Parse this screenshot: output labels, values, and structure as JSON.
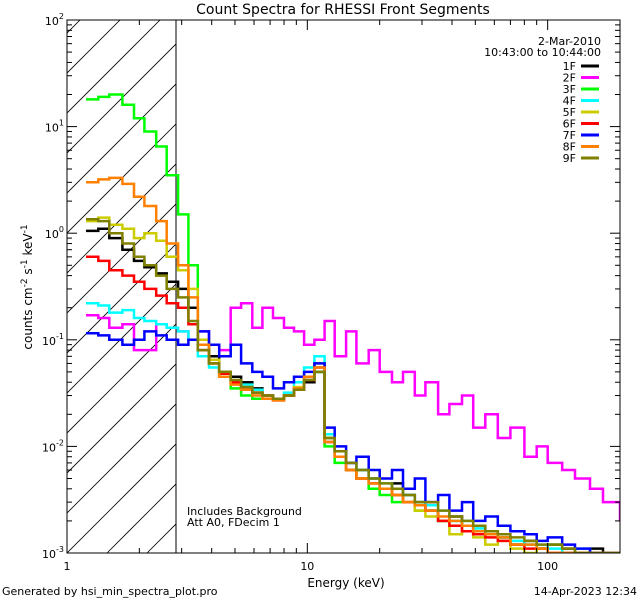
{
  "chart_data": {
    "type": "line",
    "title": "Count Spectra for RHESSI Front Segments",
    "xlabel": "Energy (keV)",
    "ylabel_main": "counts cm",
    "ylabel_sup1": "-2",
    "ylabel_mid1": " s",
    "ylabel_sup2": "-1",
    "ylabel_mid2": " keV",
    "ylabel_sup3": "-1",
    "xscale": "log",
    "yscale": "log",
    "xlim": [
      1,
      200
    ],
    "ylim": [
      0.001,
      100
    ],
    "xticks": [
      {
        "value": 1,
        "label": "1"
      },
      {
        "value": 10,
        "label": "10"
      },
      {
        "value": 100,
        "label": "100"
      }
    ],
    "yticks": [
      {
        "value": 100,
        "base": "10",
        "exp": "2"
      },
      {
        "value": 10,
        "base": "10",
        "exp": "1"
      },
      {
        "value": 1,
        "base": "10",
        "exp": "0"
      },
      {
        "value": 0.1,
        "base": "10",
        "exp": "-1"
      },
      {
        "value": 0.01,
        "base": "10",
        "exp": "-2"
      },
      {
        "value": 0.001,
        "base": "10",
        "exp": "-3"
      }
    ],
    "date": "2-Mar-2010",
    "time_range": "10:43:00 to 10:44:00",
    "hatched_region_max_keV": 3,
    "annotations": [
      "Includes Background",
      "Att A0, FDecim 1"
    ],
    "footer_left": "Generated by hsi_min_spectra_plot.pro",
    "footer_right": "14-Apr-2023 12:34",
    "series": [
      {
        "name": "1F",
        "color": "#000000",
        "x": [
          1.2,
          1.35,
          1.5,
          1.7,
          1.9,
          2.1,
          2.35,
          2.6,
          2.9,
          3.2,
          3.5,
          3.9,
          4.3,
          4.8,
          5.3,
          5.9,
          6.5,
          7.2,
          8.0,
          8.8,
          9.7,
          10.7,
          11.8,
          13,
          14.5,
          16,
          18,
          20,
          22.5,
          25,
          28,
          31,
          35,
          39,
          44,
          49,
          55,
          62,
          70,
          80,
          90,
          100,
          115,
          130,
          150,
          170,
          200
        ],
        "values": [
          1.05,
          1.1,
          0.9,
          0.7,
          0.55,
          0.48,
          0.42,
          0.35,
          0.3,
          0.2,
          0.09,
          0.07,
          0.05,
          0.045,
          0.04,
          0.035,
          0.03,
          0.028,
          0.03,
          0.035,
          0.04,
          0.05,
          0.012,
          0.009,
          0.007,
          0.006,
          0.005,
          0.004,
          0.0045,
          0.0035,
          0.003,
          0.0025,
          0.002,
          0.0022,
          0.0018,
          0.0016,
          0.0015,
          0.0014,
          0.0012,
          0.0013,
          0.0011,
          0.0012,
          0.0011,
          0.001,
          0.0011,
          0.001,
          0.001
        ]
      },
      {
        "name": "2F",
        "color": "#ff00ff",
        "x": [
          1.2,
          1.35,
          1.5,
          1.7,
          1.9,
          2.1,
          2.35,
          2.6,
          2.9,
          3.2,
          3.5,
          3.9,
          4.3,
          4.8,
          5.3,
          5.9,
          6.5,
          7.2,
          8.0,
          8.8,
          9.7,
          10.7,
          11.8,
          13,
          14.5,
          16,
          18,
          20,
          22.5,
          25,
          28,
          31,
          35,
          39,
          44,
          49,
          55,
          62,
          70,
          80,
          90,
          100,
          115,
          130,
          150,
          170,
          200
        ],
        "values": [
          0.17,
          0.16,
          0.13,
          0.14,
          0.08,
          0.08,
          0.14,
          0.13,
          0.12,
          0.1,
          0.12,
          0.09,
          0.08,
          0.2,
          0.22,
          0.13,
          0.2,
          0.16,
          0.13,
          0.12,
          0.09,
          0.1,
          0.15,
          0.07,
          0.12,
          0.06,
          0.08,
          0.05,
          0.04,
          0.05,
          0.03,
          0.04,
          0.02,
          0.025,
          0.03,
          0.015,
          0.02,
          0.012,
          0.015,
          0.008,
          0.01,
          0.007,
          0.006,
          0.005,
          0.004,
          0.003,
          0.002
        ]
      },
      {
        "name": "3F",
        "color": "#00ff00",
        "x": [
          1.2,
          1.35,
          1.5,
          1.7,
          1.9,
          2.1,
          2.35,
          2.6,
          2.9,
          3.2,
          3.5,
          3.9,
          4.3,
          4.8,
          5.3,
          5.9,
          6.5,
          7.2,
          8.0,
          8.8,
          9.7,
          10.7,
          11.8,
          13,
          14.5,
          16,
          18,
          20,
          22.5,
          25,
          28,
          31,
          35,
          39,
          44,
          49,
          55,
          62,
          70,
          80,
          90,
          100,
          115,
          130,
          150,
          170,
          200
        ],
        "values": [
          18,
          19,
          20,
          16,
          12,
          9,
          6.5,
          3.5,
          1.5,
          0.5,
          0.1,
          0.06,
          0.045,
          0.035,
          0.03,
          0.028,
          0.03,
          0.028,
          0.03,
          0.035,
          0.045,
          0.05,
          0.01,
          0.007,
          0.006,
          0.005,
          0.004,
          0.0035,
          0.003,
          0.003,
          0.0025,
          0.0025,
          0.002,
          0.002,
          0.0018,
          0.0015,
          0.0016,
          0.0014,
          0.0012,
          0.0012,
          0.0011,
          0.0012,
          0.001,
          0.001,
          0.001,
          0.001,
          0.001
        ]
      },
      {
        "name": "4F",
        "color": "#00ffff",
        "x": [
          1.2,
          1.35,
          1.5,
          1.7,
          1.9,
          2.1,
          2.35,
          2.6,
          2.9,
          3.2,
          3.5,
          3.9,
          4.3,
          4.8,
          5.3,
          5.9,
          6.5,
          7.2,
          8.0,
          8.8,
          9.7,
          10.7,
          11.8,
          13,
          14.5,
          16,
          18,
          20,
          22.5,
          25,
          28,
          31,
          35,
          39,
          44,
          49,
          55,
          62,
          70,
          80,
          90,
          100,
          115,
          130,
          150,
          170,
          200
        ],
        "values": [
          0.22,
          0.21,
          0.18,
          0.19,
          0.16,
          0.15,
          0.14,
          0.13,
          0.12,
          0.1,
          0.07,
          0.055,
          0.045,
          0.04,
          0.038,
          0.034,
          0.03,
          0.028,
          0.032,
          0.04,
          0.055,
          0.07,
          0.013,
          0.009,
          0.007,
          0.006,
          0.005,
          0.0045,
          0.004,
          0.0035,
          0.003,
          0.0028,
          0.0025,
          0.002,
          0.002,
          0.0017,
          0.0015,
          0.0014,
          0.0013,
          0.0012,
          0.0012,
          0.0011,
          0.001,
          0.0011,
          0.001,
          0.001,
          0.001
        ]
      },
      {
        "name": "5F",
        "color": "#cccc00",
        "x": [
          1.2,
          1.35,
          1.5,
          1.7,
          1.9,
          2.1,
          2.35,
          2.6,
          2.9,
          3.2,
          3.5,
          3.9,
          4.3,
          4.8,
          5.3,
          5.9,
          6.5,
          7.2,
          8.0,
          8.8,
          9.7,
          10.7,
          11.8,
          13,
          14.5,
          16,
          18,
          20,
          22.5,
          25,
          28,
          31,
          35,
          39,
          44,
          49,
          55,
          62,
          70,
          80,
          90,
          100,
          115,
          130,
          150,
          170,
          200
        ],
        "values": [
          1.3,
          1.4,
          1.2,
          1.1,
          0.9,
          1.0,
          0.85,
          0.6,
          0.45,
          0.3,
          0.1,
          0.065,
          0.05,
          0.04,
          0.036,
          0.032,
          0.03,
          0.028,
          0.03,
          0.036,
          0.045,
          0.06,
          0.012,
          0.008,
          0.006,
          0.005,
          0.0045,
          0.004,
          0.0035,
          0.003,
          0.0025,
          0.0022,
          0.002,
          0.0015,
          0.0018,
          0.0014,
          0.0012,
          0.0013,
          0.0011,
          0.001,
          0.0011,
          0.001,
          0.001,
          0.001,
          0.001,
          0.001,
          0.001
        ]
      },
      {
        "name": "6F",
        "color": "#ff0000",
        "x": [
          1.2,
          1.35,
          1.5,
          1.7,
          1.9,
          2.1,
          2.35,
          2.6,
          2.9,
          3.2,
          3.5,
          3.9,
          4.3,
          4.8,
          5.3,
          5.9,
          6.5,
          7.2,
          8.0,
          8.8,
          9.7,
          10.7,
          11.8,
          13,
          14.5,
          16,
          18,
          20,
          22.5,
          25,
          28,
          31,
          35,
          39,
          44,
          49,
          55,
          62,
          70,
          80,
          90,
          100,
          115,
          130,
          150,
          170,
          200
        ],
        "values": [
          0.6,
          0.55,
          0.45,
          0.4,
          0.35,
          0.3,
          0.26,
          0.22,
          0.2,
          0.14,
          0.08,
          0.06,
          0.048,
          0.04,
          0.036,
          0.032,
          0.03,
          0.027,
          0.03,
          0.034,
          0.042,
          0.055,
          0.011,
          0.008,
          0.006,
          0.005,
          0.0045,
          0.004,
          0.0035,
          0.003,
          0.0028,
          0.0025,
          0.002,
          0.0018,
          0.0016,
          0.0015,
          0.0014,
          0.0013,
          0.0012,
          0.0011,
          0.0011,
          0.001,
          0.001,
          0.001,
          0.001,
          0.001,
          0.001
        ]
      },
      {
        "name": "7F",
        "color": "#0000ff",
        "x": [
          1.2,
          1.35,
          1.5,
          1.7,
          1.9,
          2.1,
          2.35,
          2.6,
          2.9,
          3.2,
          3.5,
          3.9,
          4.3,
          4.8,
          5.3,
          5.9,
          6.5,
          7.2,
          8.0,
          8.8,
          9.7,
          10.7,
          11.8,
          13,
          14.5,
          16,
          18,
          20,
          22.5,
          25,
          28,
          31,
          35,
          39,
          44,
          49,
          55,
          62,
          70,
          80,
          90,
          100,
          115,
          130,
          150,
          170,
          200
        ],
        "values": [
          0.115,
          0.11,
          0.1,
          0.09,
          0.1,
          0.12,
          0.11,
          0.1,
          0.09,
          0.1,
          0.12,
          0.09,
          0.07,
          0.09,
          0.06,
          0.05,
          0.045,
          0.035,
          0.04,
          0.045,
          0.05,
          0.06,
          0.015,
          0.01,
          0.007,
          0.008,
          0.006,
          0.005,
          0.006,
          0.004,
          0.005,
          0.003,
          0.0035,
          0.0025,
          0.003,
          0.002,
          0.0022,
          0.0018,
          0.0016,
          0.0015,
          0.0013,
          0.0014,
          0.0012,
          0.0011,
          0.001,
          0.001,
          0.001
        ]
      },
      {
        "name": "8F",
        "color": "#ff7f00",
        "x": [
          1.2,
          1.35,
          1.5,
          1.7,
          1.9,
          2.1,
          2.35,
          2.6,
          2.9,
          3.2,
          3.5,
          3.9,
          4.3,
          4.8,
          5.3,
          5.9,
          6.5,
          7.2,
          8.0,
          8.8,
          9.7,
          10.7,
          11.8,
          13,
          14.5,
          16,
          18,
          20,
          22.5,
          25,
          28,
          31,
          35,
          39,
          44,
          49,
          55,
          62,
          70,
          80,
          90,
          100,
          115,
          130,
          150,
          170,
          200
        ],
        "values": [
          3.0,
          3.2,
          3.3,
          2.9,
          2.2,
          1.8,
          1.3,
          0.8,
          0.5,
          0.25,
          0.09,
          0.06,
          0.045,
          0.038,
          0.034,
          0.03,
          0.028,
          0.027,
          0.03,
          0.035,
          0.045,
          0.055,
          0.011,
          0.008,
          0.006,
          0.005,
          0.0045,
          0.004,
          0.0035,
          0.003,
          0.0028,
          0.0025,
          0.0022,
          0.002,
          0.0018,
          0.0016,
          0.0015,
          0.0014,
          0.0012,
          0.0012,
          0.0011,
          0.001,
          0.001,
          0.001,
          0.001,
          0.001,
          0.001
        ]
      },
      {
        "name": "9F",
        "color": "#808000",
        "x": [
          1.2,
          1.35,
          1.5,
          1.7,
          1.9,
          2.1,
          2.35,
          2.6,
          2.9,
          3.2,
          3.5,
          3.9,
          4.3,
          4.8,
          5.3,
          5.9,
          6.5,
          7.2,
          8.0,
          8.8,
          9.7,
          10.7,
          11.8,
          13,
          14.5,
          16,
          18,
          20,
          22.5,
          25,
          28,
          31,
          35,
          39,
          44,
          49,
          55,
          62,
          70,
          80,
          90,
          100,
          115,
          130,
          150,
          170,
          200
        ],
        "values": [
          1.35,
          1.3,
          1.0,
          0.8,
          0.6,
          0.5,
          0.4,
          0.3,
          0.25,
          0.15,
          0.08,
          0.06,
          0.05,
          0.042,
          0.036,
          0.032,
          0.03,
          0.028,
          0.03,
          0.034,
          0.042,
          0.05,
          0.012,
          0.009,
          0.007,
          0.006,
          0.005,
          0.0045,
          0.004,
          0.0035,
          0.003,
          0.003,
          0.0025,
          0.0022,
          0.002,
          0.0018,
          0.0016,
          0.0015,
          0.0014,
          0.0013,
          0.0012,
          0.0012,
          0.0011,
          0.001,
          0.001,
          0.001,
          0.001
        ]
      }
    ]
  }
}
